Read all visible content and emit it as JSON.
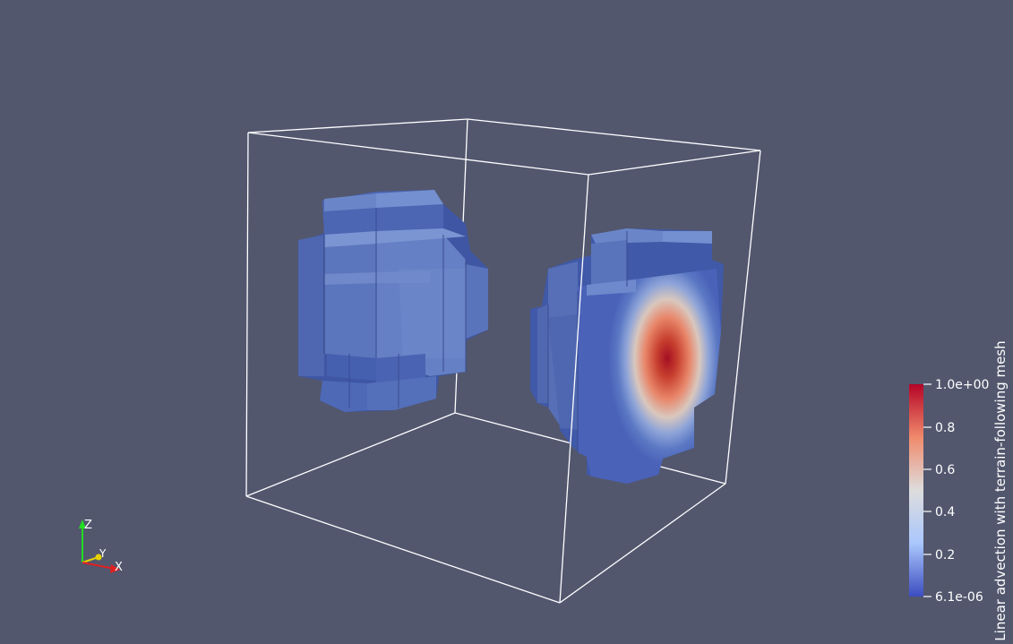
{
  "colorbar": {
    "title": "Linear advection with terrain-following mesh",
    "labels": [
      "1.0e+00",
      "0.8",
      "0.6",
      "0.4",
      "0.2",
      "6.1e-06"
    ],
    "colors": [
      "#b40426",
      "#f08a6c",
      "#dddddd",
      "#aac7fd",
      "#3b4cc0"
    ]
  },
  "axes_triad": {
    "x": "X",
    "y": "Y",
    "z": "Z"
  },
  "colors": {
    "background": "#52576e",
    "outline": "#ffffff",
    "x_axis": "#e02020",
    "y_axis": "#e6d000",
    "z_axis": "#22dd22"
  }
}
